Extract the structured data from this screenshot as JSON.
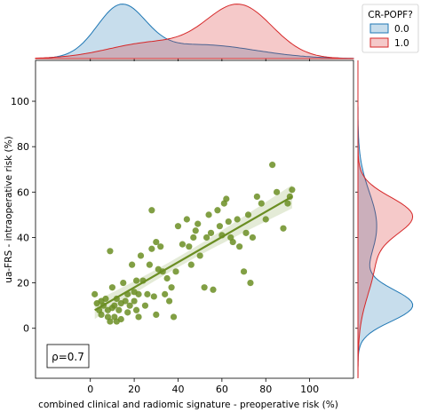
{
  "chart_data": {
    "type": "scatter",
    "xlabel": "combined clinical and radiomic signature - preoperative risk (%)",
    "ylabel": "ua-FRS - intraoperative risk (%)",
    "xlim": [
      -25,
      120
    ],
    "ylim": [
      -22,
      118
    ],
    "xticks": [
      0,
      20,
      40,
      60,
      80,
      100
    ],
    "yticks": [
      0,
      20,
      40,
      60,
      80,
      100
    ],
    "tick_labels_x": [
      "0",
      "20",
      "40",
      "60",
      "80",
      "100"
    ],
    "tick_labels_y": [
      "0",
      "20",
      "40",
      "60",
      "80",
      "100"
    ],
    "point_color": "#6b8e23",
    "points": [
      [
        2,
        15
      ],
      [
        3,
        11
      ],
      [
        4,
        8
      ],
      [
        5,
        6
      ],
      [
        5,
        12
      ],
      [
        6,
        10
      ],
      [
        7,
        13
      ],
      [
        8,
        5
      ],
      [
        8,
        8
      ],
      [
        9,
        3
      ],
      [
        9,
        34
      ],
      [
        10,
        18
      ],
      [
        10,
        9
      ],
      [
        11,
        10
      ],
      [
        11,
        5
      ],
      [
        12,
        13
      ],
      [
        12,
        3
      ],
      [
        13,
        8
      ],
      [
        14,
        4
      ],
      [
        14,
        11
      ],
      [
        15,
        20
      ],
      [
        16,
        12
      ],
      [
        17,
        15
      ],
      [
        17,
        7
      ],
      [
        18,
        10
      ],
      [
        19,
        28
      ],
      [
        20,
        12
      ],
      [
        20,
        16
      ],
      [
        21,
        8
      ],
      [
        21,
        21
      ],
      [
        22,
        15
      ],
      [
        22,
        5
      ],
      [
        23,
        32
      ],
      [
        24,
        21
      ],
      [
        25,
        10
      ],
      [
        26,
        15
      ],
      [
        27,
        28
      ],
      [
        28,
        52
      ],
      [
        28,
        35
      ],
      [
        29,
        14
      ],
      [
        30,
        6
      ],
      [
        30,
        38
      ],
      [
        31,
        26
      ],
      [
        32,
        36
      ],
      [
        33,
        25
      ],
      [
        34,
        15
      ],
      [
        35,
        22
      ],
      [
        36,
        12
      ],
      [
        37,
        18
      ],
      [
        38,
        5
      ],
      [
        39,
        25
      ],
      [
        40,
        45
      ],
      [
        42,
        37
      ],
      [
        44,
        48
      ],
      [
        45,
        36
      ],
      [
        46,
        28
      ],
      [
        47,
        40
      ],
      [
        48,
        43
      ],
      [
        49,
        46
      ],
      [
        50,
        32
      ],
      [
        52,
        18
      ],
      [
        53,
        40
      ],
      [
        54,
        50
      ],
      [
        55,
        42
      ],
      [
        56,
        17
      ],
      [
        58,
        52
      ],
      [
        59,
        45
      ],
      [
        60,
        41
      ],
      [
        61,
        55
      ],
      [
        62,
        57
      ],
      [
        63,
        47
      ],
      [
        64,
        40
      ],
      [
        65,
        38
      ],
      [
        67,
        48
      ],
      [
        68,
        36
      ],
      [
        70,
        25
      ],
      [
        71,
        42
      ],
      [
        72,
        50
      ],
      [
        73,
        20
      ],
      [
        74,
        40
      ],
      [
        76,
        58
      ],
      [
        78,
        55
      ],
      [
        80,
        48
      ],
      [
        83,
        72
      ],
      [
        85,
        60
      ],
      [
        88,
        44
      ],
      [
        90,
        55
      ],
      [
        91,
        58
      ],
      [
        92,
        61
      ]
    ],
    "regression": {
      "x0": 2,
      "y0": 8,
      "x1": 92,
      "y1": 58,
      "color": "#6b8e23"
    },
    "annotation": "ρ=0.7",
    "legend": {
      "title": "CR-POPF?",
      "placement": "top-right",
      "entries": [
        {
          "name": "0.0",
          "color": "#1f77b4"
        },
        {
          "name": "1.0",
          "color": "#d62728"
        }
      ]
    },
    "marginal_x": {
      "series": [
        {
          "name": "0.0",
          "color": "#1f77b4",
          "components": [
            [
              14,
              11,
              1.0
            ],
            [
              50,
              25,
              0.28
            ]
          ]
        },
        {
          "name": "1.0",
          "color": "#d62728",
          "components": [
            [
              68,
              15,
              1.0
            ],
            [
              28,
              20,
              0.3
            ]
          ]
        }
      ]
    },
    "marginal_y": {
      "series": [
        {
          "name": "0.0",
          "color": "#1f77b4",
          "components": [
            [
              10,
              7,
              1.0
            ],
            [
              45,
              15,
              0.35
            ]
          ]
        },
        {
          "name": "1.0",
          "color": "#d62728",
          "components": [
            [
              50,
              8,
              1.0
            ],
            [
              30,
              15,
              0.35
            ]
          ]
        }
      ]
    }
  }
}
